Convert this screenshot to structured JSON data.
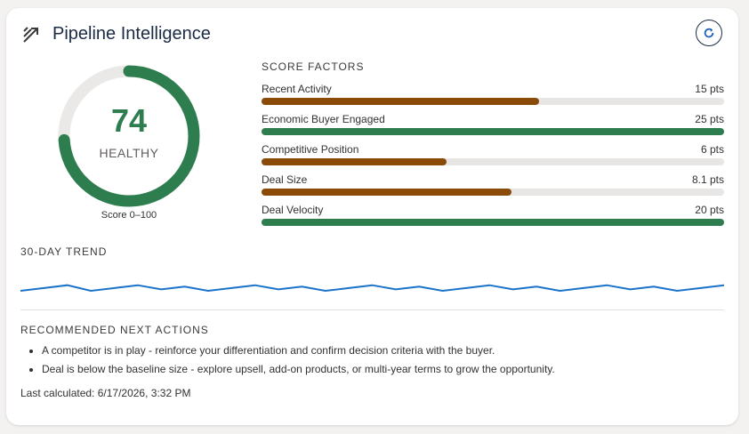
{
  "header": {
    "title": "Pipeline Intelligence",
    "icon": "trend-arrows-icon",
    "refresh_icon": "refresh-icon"
  },
  "gauge": {
    "score": "74",
    "score_value": 74,
    "max": 100,
    "status": "HEALTHY",
    "caption": "Score 0–100",
    "color": "#2e7d4f",
    "track_color": "#ebe9e7"
  },
  "factors": {
    "heading": "SCORE FACTORS",
    "items": [
      {
        "label": "Recent Activity",
        "value": "15 pts",
        "fill_fraction": 0.6,
        "color": "#8a4b08"
      },
      {
        "label": "Economic Buyer Engaged",
        "value": "25 pts",
        "fill_fraction": 1.0,
        "color": "#2e7d4f"
      },
      {
        "label": "Competitive Position",
        "value": "6 pts",
        "fill_fraction": 0.4,
        "color": "#8a4b08"
      },
      {
        "label": "Deal Size",
        "value": "8.1 pts",
        "fill_fraction": 0.54,
        "color": "#8a4b08"
      },
      {
        "label": "Deal Velocity",
        "value": "20 pts",
        "fill_fraction": 1.0,
        "color": "#2e7d4f"
      }
    ]
  },
  "trend": {
    "heading": "30-DAY TREND",
    "color": "#1a73c8",
    "values": [
      70,
      72,
      74,
      70,
      72,
      74,
      71,
      73,
      70,
      72,
      74,
      71,
      73,
      70,
      72,
      74,
      71,
      73,
      70,
      72,
      74,
      71,
      73,
      70,
      72,
      74,
      71,
      73,
      70,
      72,
      74
    ]
  },
  "actions": {
    "heading": "RECOMMENDED NEXT ACTIONS",
    "items": [
      "A competitor is in play - reinforce your differentiation and confirm decision criteria with the buyer.",
      "Deal is below the baseline size - explore upsell, add-on products, or multi-year terms to grow the opportunity."
    ]
  },
  "footer": {
    "last_calculated": "Last calculated: 6/17/2026, 3:32 PM"
  }
}
